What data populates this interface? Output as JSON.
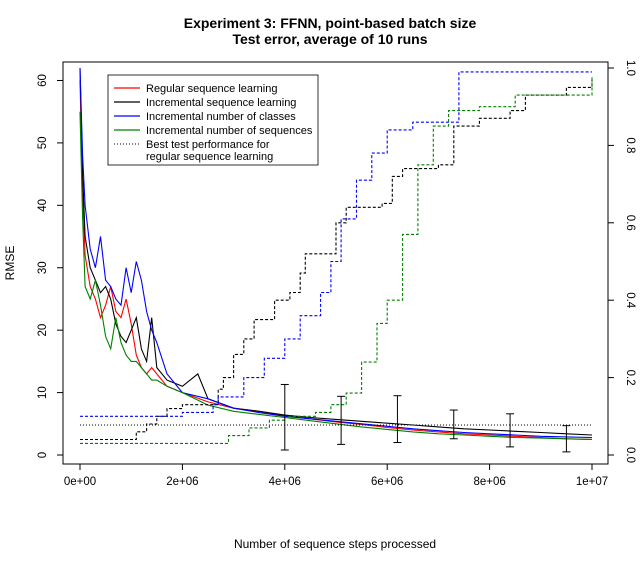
{
  "chart_data": {
    "type": "line",
    "title": "Experiment 3: FFNN, point-based batch size",
    "subtitle": "Test error, average of 10 runs",
    "xlabel": "Number of sequence steps processed",
    "ylabel": "RMSE",
    "xlim": [
      0,
      10000000
    ],
    "ylim": [
      0,
      62
    ],
    "y2lim": [
      0,
      1.0
    ],
    "x_ticks": [
      0,
      2000000,
      4000000,
      6000000,
      8000000,
      10000000
    ],
    "x_tick_labels": [
      "0e+00",
      "2e+06",
      "4e+06",
      "6e+06",
      "8e+06",
      "1e+07"
    ],
    "y_ticks": [
      0,
      10,
      20,
      30,
      40,
      50,
      60
    ],
    "y_tick_labels": [
      "0",
      "10",
      "20",
      "30",
      "40",
      "50",
      "60"
    ],
    "y2_ticks": [
      0.0,
      0.2,
      0.4,
      0.6,
      0.8,
      1.0
    ],
    "y2_tick_labels": [
      "0.0",
      "0.2",
      "0.4",
      "0.6",
      "0.8",
      "1.0"
    ],
    "legend": {
      "position": "top-right",
      "entries": [
        {
          "label": "Regular sequence learning",
          "color": "#ff0000",
          "style": "solid"
        },
        {
          "label": "Incremental sequence learning",
          "color": "#000000",
          "style": "solid"
        },
        {
          "label": "Incremental number of classes",
          "color": "#0000ff",
          "style": "solid"
        },
        {
          "label": "Incremental number of sequences",
          "color": "#008000",
          "style": "solid"
        },
        {
          "label": "Best test performance for",
          "label2": "regular sequence learning",
          "color": "#000000",
          "style": "dotted"
        }
      ]
    },
    "series": [
      {
        "name": "Regular sequence learning",
        "color": "#ff0000",
        "axis": "left",
        "x": [
          0,
          50000,
          100000,
          200000,
          300000,
          400000,
          500000,
          600000,
          700000,
          800000,
          900000,
          1000000,
          1100000,
          1200000,
          1300000,
          1400000,
          1500000,
          1700000,
          2000000,
          2500000,
          3000000,
          3500000,
          4000000,
          4500000,
          5000000,
          5500000,
          6000000,
          6500000,
          7000000,
          7500000,
          8000000,
          8500000,
          9000000,
          9500000,
          10000000
        ],
        "y": [
          60,
          42,
          32,
          27,
          25,
          22,
          24,
          27,
          23,
          22,
          25,
          21,
          16,
          14,
          13,
          14,
          13,
          11,
          10,
          8.5,
          7.5,
          7,
          6.3,
          5.8,
          5.3,
          4.9,
          4.4,
          4,
          3.7,
          3.4,
          3.2,
          3,
          2.8,
          2.6,
          2.5
        ]
      },
      {
        "name": "Incremental sequence learning",
        "color": "#000000",
        "axis": "left",
        "x": [
          0,
          50000,
          100000,
          200000,
          300000,
          400000,
          500000,
          600000,
          700000,
          800000,
          900000,
          1000000,
          1100000,
          1200000,
          1300000,
          1400000,
          1500000,
          1700000,
          2000000,
          2300000,
          2500000,
          3000000,
          3500000,
          4000000,
          4500000,
          5000000,
          5500000,
          6000000,
          6500000,
          7000000,
          7500000,
          8000000,
          8500000,
          9000000,
          9500000,
          10000000
        ],
        "y": [
          62,
          45,
          35,
          30,
          28,
          26,
          27,
          25,
          21,
          19,
          18,
          20,
          22,
          17,
          15,
          22,
          14,
          12,
          11,
          13,
          9,
          7.5,
          7,
          6.4,
          6,
          5.7,
          5.4,
          5.1,
          4.8,
          4.5,
          4.2,
          4,
          3.8,
          3.6,
          3.4,
          3.2
        ]
      },
      {
        "name": "Incremental number of classes",
        "color": "#0000ff",
        "axis": "left",
        "x": [
          0,
          50000,
          100000,
          200000,
          300000,
          400000,
          500000,
          600000,
          700000,
          800000,
          900000,
          1000000,
          1100000,
          1200000,
          1300000,
          1400000,
          1500000,
          1700000,
          2000000,
          2500000,
          3000000,
          3500000,
          4000000,
          4500000,
          5000000,
          5500000,
          6000000,
          6500000,
          7000000,
          7500000,
          8000000,
          8500000,
          9000000,
          9500000,
          10000000
        ],
        "y": [
          62,
          48,
          40,
          33,
          30,
          35,
          28,
          27,
          25,
          24,
          30,
          26,
          31,
          28,
          23,
          20,
          18,
          13,
          10,
          9,
          7.5,
          6.8,
          6.2,
          5.8,
          5.4,
          5,
          4.6,
          4.2,
          3.9,
          3.6,
          3.4,
          3.2,
          3,
          2.9,
          2.8
        ]
      },
      {
        "name": "Incremental number of sequences",
        "color": "#008000",
        "axis": "left",
        "x": [
          0,
          50000,
          100000,
          200000,
          300000,
          400000,
          500000,
          600000,
          700000,
          800000,
          900000,
          1000000,
          1100000,
          1200000,
          1300000,
          1400000,
          1500000,
          1700000,
          2000000,
          2500000,
          3000000,
          3500000,
          4000000,
          4500000,
          5000000,
          5500000,
          6000000,
          6500000,
          7000000,
          7500000,
          8000000,
          8500000,
          9000000,
          9500000,
          10000000
        ],
        "y": [
          55,
          38,
          27,
          25,
          28,
          24,
          19,
          17,
          22,
          18,
          16,
          15,
          15,
          14,
          13,
          12,
          12,
          11,
          10,
          8,
          7,
          6.5,
          6,
          5.5,
          5,
          4.5,
          4.1,
          3.7,
          3.4,
          3.2,
          3,
          2.8,
          2.7,
          2.6,
          2.5
        ]
      },
      {
        "name": "Best test performance for regular sequence learning",
        "color": "#000000",
        "style": "dotted",
        "axis": "left",
        "x": [
          0,
          10000000
        ],
        "y": [
          4.8,
          4.8
        ]
      },
      {
        "name": "Incremental sequence learning (fraction)",
        "color": "#000000",
        "style": "dashed",
        "axis": "right",
        "step": true,
        "x": [
          0,
          1000000,
          1100000,
          1300000,
          1500000,
          1700000,
          2000000,
          2700000,
          2800000,
          3000000,
          3200000,
          3400000,
          3800000,
          4100000,
          4300000,
          4400000,
          5000000,
          5200000,
          5900000,
          6100000,
          6300000,
          7000000,
          7300000,
          7800000,
          8400000,
          8700000,
          9500000,
          10000000
        ],
        "y": [
          0.04,
          0.04,
          0.06,
          0.08,
          0.1,
          0.12,
          0.13,
          0.17,
          0.2,
          0.26,
          0.3,
          0.35,
          0.4,
          0.42,
          0.47,
          0.52,
          0.6,
          0.64,
          0.65,
          0.72,
          0.74,
          0.75,
          0.85,
          0.87,
          0.89,
          0.93,
          0.95,
          0.97
        ]
      },
      {
        "name": "Incremental number of classes (fraction)",
        "color": "#0000ff",
        "style": "dashed",
        "axis": "right",
        "step": true,
        "x": [
          0,
          1800000,
          2000000,
          2600000,
          2700000,
          3200000,
          3600000,
          4000000,
          4300000,
          4700000,
          4900000,
          5100000,
          5400000,
          5700000,
          6000000,
          6500000,
          7400000,
          9500000,
          10000000
        ],
        "y": [
          0.1,
          0.1,
          0.11,
          0.13,
          0.15,
          0.2,
          0.25,
          0.3,
          0.36,
          0.42,
          0.5,
          0.61,
          0.71,
          0.78,
          0.84,
          0.86,
          0.99,
          0.99,
          0.99
        ]
      },
      {
        "name": "Incremental number of sequences (fraction)",
        "color": "#008000",
        "style": "dashed",
        "axis": "right",
        "step": true,
        "x": [
          0,
          2600000,
          2900000,
          3300000,
          3700000,
          4000000,
          4600000,
          4900000,
          5200000,
          5500000,
          5800000,
          6000000,
          6300000,
          6600000,
          6900000,
          7200000,
          7800000,
          8500000,
          9500000,
          10000000
        ],
        "y": [
          0.03,
          0.03,
          0.05,
          0.07,
          0.09,
          0.1,
          0.11,
          0.13,
          0.16,
          0.24,
          0.34,
          0.4,
          0.57,
          0.75,
          0.85,
          0.89,
          0.9,
          0.93,
          0.93,
          0.98
        ]
      }
    ],
    "error_bars": [
      {
        "x": 4000000,
        "low": 0.8,
        "high": 11.3
      },
      {
        "x": 5100000,
        "low": 1.7,
        "high": 9.4
      },
      {
        "x": 6200000,
        "low": 2.0,
        "high": 9.5
      },
      {
        "x": 7300000,
        "low": 2.6,
        "high": 7.2
      },
      {
        "x": 8400000,
        "low": 1.3,
        "high": 6.6
      },
      {
        "x": 9500000,
        "low": 0.5,
        "high": 4.7
      }
    ]
  }
}
